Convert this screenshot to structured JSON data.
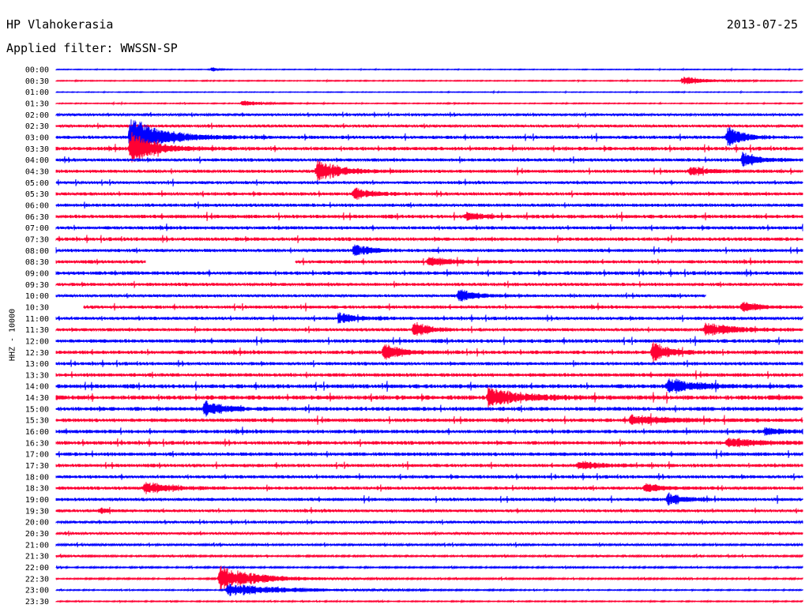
{
  "header": {
    "station": "HP Vlahokerasia",
    "date": "2013-07-25",
    "filter_text": "Applied filter: WWSSN-SP"
  },
  "chart_data": {
    "type": "line",
    "title": "HP Vlahokerasia",
    "subtitle": "Applied filter: WWSSN-SP",
    "ylabel": "HHZ - 10000",
    "xlabel": "",
    "grid": false,
    "colors": [
      "#0000ff",
      "#ff0033"
    ],
    "y_tick_labels": [
      "00:00",
      "00:30",
      "01:00",
      "01:30",
      "02:00",
      "02:30",
      "03:00",
      "03:30",
      "04:00",
      "04:30",
      "05:00",
      "05:30",
      "06:00",
      "06:30",
      "07:00",
      "07:30",
      "08:00",
      "08:30",
      "09:00",
      "09:30",
      "10:00",
      "10:30",
      "11:00",
      "11:30",
      "12:00",
      "12:30",
      "13:00",
      "13:30",
      "14:00",
      "14:30",
      "15:00",
      "15:30",
      "16:00",
      "16:30",
      "17:00",
      "17:30",
      "18:00",
      "18:30",
      "19:00",
      "19:30",
      "20:00",
      "20:30",
      "21:00",
      "21:30",
      "22:00",
      "22:30",
      "23:00",
      "23:30"
    ],
    "traces_note": "48 half-hour helicorder traces; x fraction 0-1 across 30 minutes",
    "noise_level": [
      0.4,
      0.5,
      0.4,
      0.5,
      1.2,
      1.4,
      1.6,
      1.8,
      1.6,
      1.6,
      1.4,
      1.6,
      1.6,
      1.8,
      1.6,
      1.8,
      1.6,
      1.6,
      1.8,
      1.6,
      1.4,
      1.6,
      1.6,
      1.6,
      1.8,
      1.8,
      1.6,
      1.8,
      2.0,
      2.2,
      2.0,
      1.8,
      1.8,
      1.8,
      1.8,
      1.6,
      1.6,
      1.6,
      1.6,
      1.4,
      1.2,
      1.2,
      1.0,
      0.9,
      0.8,
      0.8,
      0.6,
      0.6
    ],
    "gaps": [
      {
        "trace": "08:30",
        "from": 0.12,
        "to": 0.32
      },
      {
        "trace": "10:00",
        "from": 0.87,
        "to": 1.0
      },
      {
        "trace": "10:30",
        "from": 0.0,
        "to": 0.036
      }
    ],
    "events": [
      {
        "trace": "00:00",
        "x": 0.21,
        "amp": 3,
        "dur": 0.006
      },
      {
        "trace": "00:30",
        "x": 0.84,
        "amp": 6,
        "dur": 0.03
      },
      {
        "trace": "01:30",
        "x": 0.25,
        "amp": 4,
        "dur": 0.02
      },
      {
        "trace": "03:00",
        "x": 0.1,
        "amp": 26,
        "dur": 0.04
      },
      {
        "trace": "03:00",
        "x": 0.9,
        "amp": 14,
        "dur": 0.02
      },
      {
        "trace": "03:30",
        "x": 0.1,
        "amp": 22,
        "dur": 0.03
      },
      {
        "trace": "04:00",
        "x": 0.92,
        "amp": 10,
        "dur": 0.02
      },
      {
        "trace": "04:30",
        "x": 0.35,
        "amp": 14,
        "dur": 0.03
      },
      {
        "trace": "04:30",
        "x": 0.85,
        "amp": 5,
        "dur": 0.03
      },
      {
        "trace": "05:30",
        "x": 0.4,
        "amp": 8,
        "dur": 0.02
      },
      {
        "trace": "06:30",
        "x": 0.55,
        "amp": 5,
        "dur": 0.02
      },
      {
        "trace": "08:00",
        "x": 0.4,
        "amp": 8,
        "dur": 0.02
      },
      {
        "trace": "08:30",
        "x": 0.5,
        "amp": 6,
        "dur": 0.03
      },
      {
        "trace": "10:00",
        "x": 0.54,
        "amp": 9,
        "dur": 0.02
      },
      {
        "trace": "10:30",
        "x": 0.92,
        "amp": 7,
        "dur": 0.02
      },
      {
        "trace": "11:00",
        "x": 0.38,
        "amp": 7,
        "dur": 0.02
      },
      {
        "trace": "11:30",
        "x": 0.48,
        "amp": 10,
        "dur": 0.02
      },
      {
        "trace": "11:30",
        "x": 0.87,
        "amp": 8,
        "dur": 0.04
      },
      {
        "trace": "12:30",
        "x": 0.44,
        "amp": 12,
        "dur": 0.02
      },
      {
        "trace": "12:30",
        "x": 0.8,
        "amp": 14,
        "dur": 0.02
      },
      {
        "trace": "14:00",
        "x": 0.82,
        "amp": 9,
        "dur": 0.04
      },
      {
        "trace": "14:30",
        "x": 0.58,
        "amp": 12,
        "dur": 0.04
      },
      {
        "trace": "15:00",
        "x": 0.2,
        "amp": 12,
        "dur": 0.02
      },
      {
        "trace": "15:30",
        "x": 0.77,
        "amp": 6,
        "dur": 0.05
      },
      {
        "trace": "16:00",
        "x": 0.95,
        "amp": 5,
        "dur": 0.02
      },
      {
        "trace": "16:30",
        "x": 0.9,
        "amp": 6,
        "dur": 0.04
      },
      {
        "trace": "17:30",
        "x": 0.7,
        "amp": 6,
        "dur": 0.03
      },
      {
        "trace": "18:30",
        "x": 0.12,
        "amp": 8,
        "dur": 0.03
      },
      {
        "trace": "18:30",
        "x": 0.79,
        "amp": 6,
        "dur": 0.02
      },
      {
        "trace": "19:00",
        "x": 0.82,
        "amp": 8,
        "dur": 0.02
      },
      {
        "trace": "19:30",
        "x": 0.06,
        "amp": 3,
        "dur": 0.01
      },
      {
        "trace": "22:30",
        "x": 0.22,
        "amp": 16,
        "dur": 0.05
      },
      {
        "trace": "23:00",
        "x": 0.23,
        "amp": 8,
        "dur": 0.08
      }
    ]
  }
}
